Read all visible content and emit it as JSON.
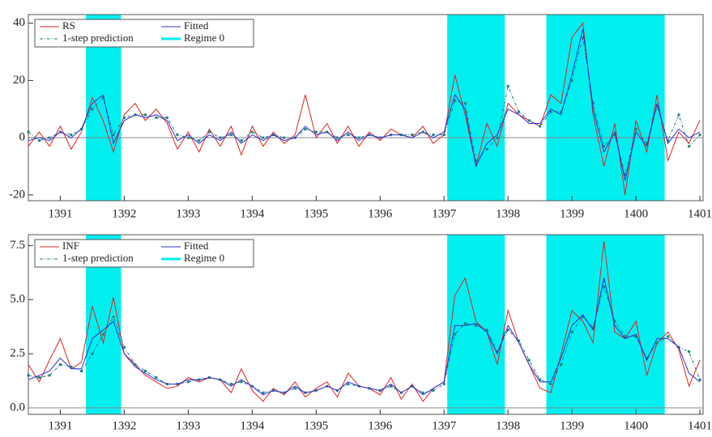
{
  "chart_data": [
    {
      "type": "line",
      "xlim": [
        1390.5,
        1401.05
      ],
      "xticks": [
        1391,
        1392,
        1393,
        1394,
        1395,
        1396,
        1397,
        1398,
        1399,
        1400,
        1401
      ],
      "ylim": [
        -22,
        43
      ],
      "yticks": [
        -20,
        0,
        20,
        40
      ],
      "zero_line": true,
      "x": [
        1390.5,
        1390.67,
        1390.83,
        1391,
        1391.17,
        1391.33,
        1391.5,
        1391.67,
        1391.83,
        1392,
        1392.17,
        1392.33,
        1392.5,
        1392.67,
        1392.83,
        1393,
        1393.17,
        1393.33,
        1393.5,
        1393.67,
        1393.83,
        1394,
        1394.17,
        1394.33,
        1394.5,
        1394.67,
        1394.83,
        1395,
        1395.17,
        1395.33,
        1395.5,
        1395.67,
        1395.83,
        1396,
        1396.17,
        1396.33,
        1396.5,
        1396.67,
        1396.83,
        1397,
        1397.17,
        1397.33,
        1397.5,
        1397.67,
        1397.83,
        1398,
        1398.17,
        1398.33,
        1398.5,
        1398.67,
        1398.83,
        1399,
        1399.17,
        1399.33,
        1399.5,
        1399.67,
        1399.83,
        1400,
        1400.17,
        1400.33,
        1400.5,
        1400.67,
        1400.83,
        1401
      ],
      "regime": {
        "name": "Regime 0",
        "color": "#00f0f0",
        "spans": [
          [
            1391.4,
            1391.95
          ],
          [
            1397.05,
            1397.95
          ],
          [
            1398.6,
            1400.45
          ]
        ]
      },
      "series": [
        {
          "name": "RS",
          "color": "#e02020",
          "dash": false,
          "markers": false,
          "values": [
            -3,
            2,
            -3,
            4,
            -4,
            2,
            14,
            6,
            -5,
            8,
            12,
            6,
            10,
            5,
            -4,
            2,
            -5,
            3,
            -3,
            4,
            -6,
            4,
            -3,
            2,
            -2,
            1,
            15,
            0,
            5,
            -2,
            4,
            -3,
            2,
            -1,
            3,
            1,
            0,
            4,
            -2,
            1,
            22,
            8,
            -10,
            5,
            -3,
            12,
            8,
            6,
            4,
            15,
            12,
            35,
            40,
            8,
            -10,
            5,
            -20,
            6,
            -5,
            15,
            -8,
            2,
            -2,
            6
          ]
        },
        {
          "name": "1-step prediction",
          "color": "#208080",
          "dash": true,
          "markers": true,
          "values": [
            2,
            -1,
            0,
            2,
            1,
            3,
            10,
            14,
            1,
            7,
            8,
            8,
            7,
            7,
            1,
            0,
            -1,
            2,
            0,
            1,
            -1,
            2,
            0,
            1,
            0,
            0,
            3,
            2,
            2,
            0,
            1,
            0,
            1,
            0,
            1,
            1,
            1,
            2,
            1,
            1,
            13,
            12,
            -8,
            -4,
            0,
            18,
            9,
            6,
            4,
            9,
            9,
            20,
            35,
            12,
            -3,
            1,
            -13,
            3,
            -2,
            11,
            -1,
            8,
            -3,
            1
          ]
        },
        {
          "name": "Fitted",
          "color": "#3030d0",
          "dash": false,
          "markers": false,
          "values": [
            -1,
            0,
            -1,
            2,
            0,
            3,
            12,
            15,
            -2,
            6,
            8,
            7,
            8,
            6,
            -1,
            1,
            -2,
            1,
            -1,
            2,
            -2,
            1,
            -1,
            1,
            -1,
            0,
            4,
            1,
            2,
            -1,
            2,
            -1,
            1,
            0,
            1,
            1,
            0,
            2,
            0,
            2,
            15,
            10,
            -10,
            -2,
            1,
            10,
            8,
            5,
            5,
            10,
            8,
            22,
            38,
            10,
            -5,
            2,
            -15,
            2,
            -3,
            12,
            -2,
            3,
            0,
            2
          ]
        }
      ]
    },
    {
      "type": "line",
      "xlim": [
        1390.5,
        1401.05
      ],
      "xticks": [
        1391,
        1392,
        1393,
        1394,
        1395,
        1396,
        1397,
        1398,
        1399,
        1400,
        1401
      ],
      "ylim": [
        -0.3,
        8.0
      ],
      "yticks": [
        {
          "value": 0,
          "label": "0.0"
        },
        {
          "value": 2.5,
          "label": "2.5"
        },
        {
          "value": 5,
          "label": "5.0"
        },
        {
          "value": 7.5,
          "label": "7.5"
        }
      ],
      "zero_line": true,
      "x": [
        1390.5,
        1390.67,
        1390.83,
        1391,
        1391.17,
        1391.33,
        1391.5,
        1391.67,
        1391.83,
        1392,
        1392.17,
        1392.33,
        1392.5,
        1392.67,
        1392.83,
        1393,
        1393.17,
        1393.33,
        1393.5,
        1393.67,
        1393.83,
        1394,
        1394.17,
        1394.33,
        1394.5,
        1394.67,
        1394.83,
        1395,
        1395.17,
        1395.33,
        1395.5,
        1395.67,
        1395.83,
        1396,
        1396.17,
        1396.33,
        1396.5,
        1396.67,
        1396.83,
        1397,
        1397.17,
        1397.33,
        1397.5,
        1397.67,
        1397.83,
        1398,
        1398.17,
        1398.33,
        1398.5,
        1398.67,
        1398.83,
        1399,
        1399.17,
        1399.33,
        1399.5,
        1399.67,
        1399.83,
        1400,
        1400.17,
        1400.33,
        1400.5,
        1400.67,
        1400.83,
        1401
      ],
      "regime": {
        "name": "Regime 0",
        "color": "#00f0f0",
        "spans": [
          [
            1391.4,
            1391.95
          ],
          [
            1397.05,
            1397.95
          ],
          [
            1398.6,
            1400.45
          ]
        ]
      },
      "series": [
        {
          "name": "INF",
          "color": "#e02020",
          "dash": false,
          "markers": false,
          "values": [
            2.0,
            1.2,
            2.2,
            3.2,
            1.8,
            2.1,
            4.7,
            3.0,
            5.1,
            2.5,
            2.0,
            1.5,
            1.2,
            0.9,
            1.0,
            1.4,
            1.2,
            1.4,
            1.3,
            0.7,
            1.8,
            0.8,
            0.3,
            0.9,
            0.6,
            1.2,
            0.5,
            0.9,
            1.2,
            0.5,
            1.6,
            1.0,
            0.9,
            0.6,
            1.4,
            0.4,
            1.1,
            0.3,
            0.9,
            1.2,
            5.2,
            6.0,
            4.0,
            3.5,
            2.0,
            4.5,
            3.0,
            2.0,
            0.9,
            0.7,
            2.5,
            4.5,
            4.0,
            3.0,
            7.7,
            3.5,
            3.2,
            4.0,
            1.5,
            3.0,
            3.5,
            2.7,
            1.0,
            2.2
          ]
        },
        {
          "name": "1-step prediction",
          "color": "#208080",
          "dash": true,
          "markers": true,
          "values": [
            1.5,
            1.4,
            1.5,
            2.0,
            1.9,
            1.7,
            2.5,
            3.4,
            4.2,
            2.8,
            2.0,
            1.7,
            1.4,
            1.1,
            1.1,
            1.2,
            1.3,
            1.4,
            1.3,
            1.1,
            1.2,
            1.0,
            0.7,
            0.8,
            0.7,
            0.9,
            0.7,
            0.8,
            1.0,
            0.8,
            1.1,
            1.0,
            0.9,
            0.8,
            1.0,
            0.7,
            1.0,
            0.7,
            0.8,
            1.1,
            3.4,
            3.9,
            3.8,
            3.6,
            2.6,
            3.6,
            3.1,
            2.2,
            1.3,
            1.1,
            2.0,
            3.5,
            4.2,
            3.7,
            5.6,
            4.0,
            3.3,
            3.3,
            2.3,
            3.0,
            3.3,
            2.8,
            2.6,
            1.3
          ]
        },
        {
          "name": "Fitted",
          "color": "#3030d0",
          "dash": false,
          "markers": false,
          "values": [
            1.3,
            1.5,
            1.7,
            2.3,
            1.8,
            1.8,
            3.2,
            3.6,
            4.0,
            2.5,
            1.9,
            1.6,
            1.3,
            1.1,
            1.1,
            1.3,
            1.3,
            1.4,
            1.3,
            1.0,
            1.3,
            1.0,
            0.6,
            0.8,
            0.7,
            1.0,
            0.7,
            0.8,
            1.0,
            0.8,
            1.2,
            1.0,
            0.9,
            0.8,
            1.1,
            0.7,
            1.0,
            0.6,
            0.9,
            1.2,
            3.8,
            3.8,
            3.9,
            3.5,
            2.5,
            3.8,
            3.0,
            2.0,
            1.2,
            1.2,
            2.3,
            3.8,
            4.3,
            3.6,
            6.0,
            3.8,
            3.2,
            3.4,
            2.2,
            3.2,
            3.2,
            2.8,
            1.6,
            1.2
          ]
        }
      ]
    }
  ]
}
